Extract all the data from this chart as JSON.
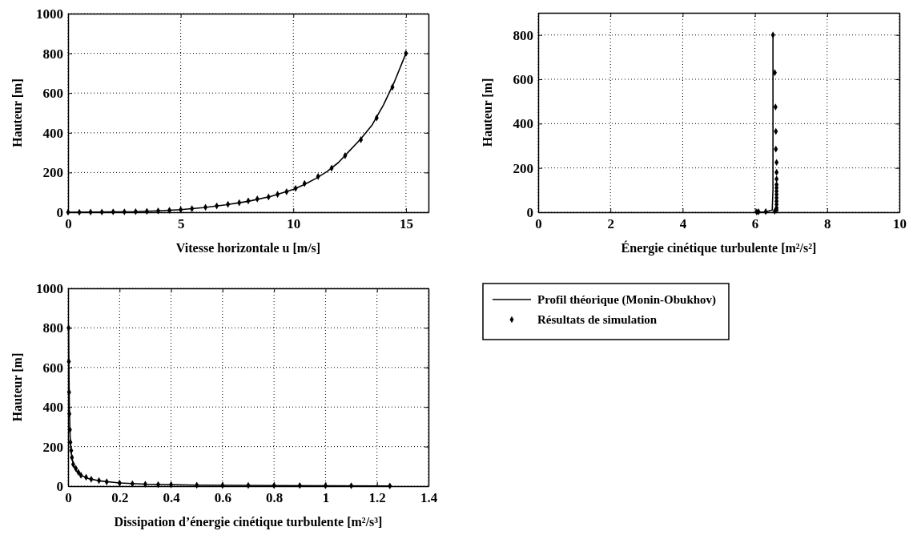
{
  "chart_data": [
    {
      "type": "line",
      "xlabel": "Vitesse horizontale u [m/s]",
      "ylabel": "Hauteur [m]",
      "xlim": [
        0,
        16
      ],
      "xticks": [
        0,
        5,
        10,
        15
      ],
      "ylim": [
        0,
        1000
      ],
      "yticks": [
        0,
        200,
        400,
        600,
        800,
        1000
      ],
      "grid": true,
      "series": [
        {
          "type": "line",
          "color": "#000000",
          "line_style": "solid",
          "marker": "none",
          "x": [
            0,
            1,
            2,
            3,
            4,
            5,
            6,
            7,
            8,
            9,
            10,
            10.5,
            11,
            11.5,
            12,
            12.5,
            13,
            13.5,
            14,
            14.5,
            15
          ],
          "values": [
            0,
            1,
            2,
            3,
            7,
            13,
            23,
            37,
            55,
            80,
            115,
            140,
            170,
            205,
            250,
            310,
            370,
            440,
            540,
            660,
            800
          ]
        },
        {
          "type": "scatter",
          "color": "#000000",
          "marker": "diamond",
          "x": [
            0,
            0.5,
            1,
            1.5,
            2,
            2.5,
            3,
            3.5,
            4,
            4.5,
            5,
            5.5,
            6.1,
            6.6,
            7.1,
            7.6,
            8,
            8.4,
            8.9,
            9.3,
            9.7,
            10.1,
            10.5,
            11.1,
            11.7,
            12.3,
            13,
            13.7,
            14.4,
            15
          ],
          "values": [
            0,
            0,
            1,
            1,
            2,
            2,
            3,
            5,
            7,
            10,
            13,
            18,
            25,
            32,
            40,
            48,
            57,
            67,
            77,
            90,
            103,
            120,
            145,
            180,
            222,
            285,
            365,
            475,
            630,
            800
          ]
        }
      ]
    },
    {
      "type": "line",
      "xlabel": "Énergie cinétique turbulente [m²/s²]",
      "ylabel": "Hauteur [m]",
      "xlim": [
        0,
        10
      ],
      "xticks": [
        0,
        2,
        4,
        6,
        8,
        10
      ],
      "ylim": [
        0,
        900
      ],
      "yticks": [
        0,
        200,
        400,
        600,
        800
      ],
      "grid": true,
      "series": [
        {
          "type": "line",
          "color": "#000000",
          "line_style": "solid",
          "marker": "none",
          "x": [
            6.0,
            6.3,
            6.48,
            6.5,
            6.5
          ],
          "values": [
            0,
            2,
            10,
            100,
            800
          ]
        },
        {
          "type": "scatter",
          "color": "#000000",
          "marker": "diamond",
          "x": [
            6.05,
            6.1,
            6.3,
            6.55,
            6.6,
            6.6,
            6.6,
            6.6,
            6.6,
            6.6,
            6.6,
            6.6,
            6.6,
            6.6,
            6.6,
            6.6,
            6.58,
            6.58,
            6.57,
            6.55,
            6.5
          ],
          "values": [
            1,
            2,
            3,
            5,
            10,
            20,
            35,
            50,
            65,
            80,
            95,
            110,
            125,
            150,
            180,
            225,
            285,
            365,
            475,
            630,
            800
          ]
        }
      ]
    },
    {
      "type": "line",
      "xlabel": "Dissipation d’énergie cinétique turbulente [m²/s³]",
      "ylabel": "Hauteur [m]",
      "xlim": [
        0,
        1.4
      ],
      "xticks": [
        0,
        0.2,
        0.4,
        0.6,
        0.8,
        1,
        1.2,
        1.4
      ],
      "ylim": [
        0,
        1000
      ],
      "yticks": [
        0,
        200,
        400,
        600,
        800,
        1000
      ],
      "grid": true,
      "legend": "right",
      "series": [
        {
          "name": "Profil théorique (Monin-Obukhov)",
          "type": "line",
          "color": "#000000",
          "line_style": "solid",
          "marker": "none",
          "x": [
            0.002,
            0.003,
            0.005,
            0.008,
            0.012,
            0.02,
            0.03,
            0.05,
            0.08,
            0.12,
            0.2,
            0.3,
            0.5,
            0.8,
            1.25
          ],
          "values": [
            800,
            630,
            400,
            250,
            170,
            110,
            80,
            55,
            38,
            27,
            16,
            10,
            5,
            3,
            1
          ]
        },
        {
          "name": "Résultats de simulation",
          "type": "scatter",
          "color": "#000000",
          "marker": "diamond",
          "x": [
            0.002,
            0.003,
            0.004,
            0.005,
            0.007,
            0.009,
            0.012,
            0.015,
            0.02,
            0.03,
            0.04,
            0.05,
            0.07,
            0.09,
            0.12,
            0.15,
            0.2,
            0.25,
            0.3,
            0.35,
            0.4,
            0.5,
            0.6,
            0.7,
            0.8,
            0.9,
            1.0,
            1.1,
            1.25
          ],
          "values": [
            800,
            630,
            475,
            365,
            285,
            222,
            180,
            145,
            110,
            90,
            70,
            55,
            45,
            35,
            28,
            22,
            16,
            12,
            10,
            8,
            7,
            5,
            4,
            4,
            3,
            3,
            2,
            2,
            1
          ]
        }
      ]
    }
  ]
}
